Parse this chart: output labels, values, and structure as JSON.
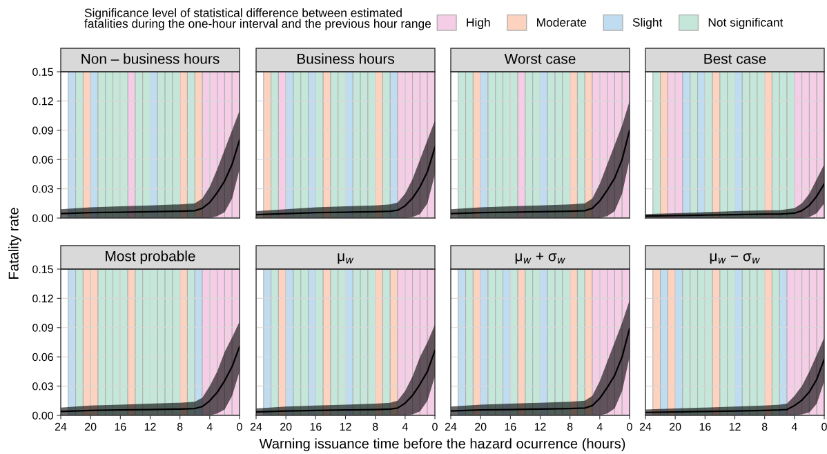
{
  "chart_data": [
    {
      "type": "line",
      "title": "Non – business hours",
      "xlabel": "Warning issuance time before the hazard ocurrence (hours)",
      "ylabel": "Fatality rate",
      "legend_title": "Significance level of statistical difference between estimated\nfatalities during the one-hour interval and the previous hour range",
      "legend": "top right",
      "grid": true,
      "tick_labels": "y",
      "xlim": [
        24,
        0
      ],
      "xticks": [
        {
          "value": 24,
          "label": null
        },
        {
          "value": 20,
          "label": null
        },
        {
          "value": 16,
          "label": null
        },
        {
          "value": 12,
          "label": null
        },
        {
          "value": 8,
          "label": null
        },
        {
          "value": 4,
          "label": null
        },
        {
          "value": 0,
          "label": null
        }
      ],
      "ylim": [
        0,
        0.15
      ],
      "yticks": [
        {
          "value": 0,
          "label": "0.00"
        },
        {
          "value": 0.03,
          "label": "0.03"
        },
        {
          "value": 0.06,
          "label": "0.06"
        },
        {
          "value": 0.09,
          "label": "0.09"
        },
        {
          "value": 0.12,
          "label": "0.12"
        },
        {
          "value": 0.15,
          "label": "0.15"
        }
      ],
      "x": [
        24,
        20,
        16,
        12,
        8,
        6,
        5,
        4,
        3,
        2,
        1,
        0
      ],
      "series": [
        {
          "color": "#000000",
          "values": [
            0.0045,
            0.0055,
            0.006,
            0.0065,
            0.007,
            0.0075,
            0.01,
            0.016,
            0.026,
            0.038,
            0.055,
            0.08
          ],
          "lower": [
            0,
            0,
            0,
            0,
            0,
            0,
            0,
            0,
            0.002,
            0.006,
            0.02,
            0.05
          ],
          "upper": [
            0.009,
            0.011,
            0.012,
            0.013,
            0.014,
            0.015,
            0.02,
            0.032,
            0.05,
            0.07,
            0.09,
            0.11
          ]
        }
      ],
      "bands": [
        {
          "axis": "x",
          "from": 15,
          "to": 14,
          "color": "#f5cde6",
          "label": "High"
        },
        {
          "axis": "x",
          "from": 5,
          "to": 4,
          "color": "#f5cde6"
        },
        {
          "axis": "x",
          "from": 4,
          "to": 3,
          "color": "#f5cde6"
        },
        {
          "axis": "x",
          "from": 3,
          "to": 2,
          "color": "#f5cde6"
        },
        {
          "axis": "x",
          "from": 2,
          "to": 1,
          "color": "#f5cde6"
        },
        {
          "axis": "x",
          "from": 1,
          "to": 0,
          "color": "#f5cde6"
        },
        {
          "axis": "x",
          "from": 21,
          "to": 20,
          "color": "#fdd2bf",
          "label": "Moderate"
        },
        {
          "axis": "x",
          "from": 8,
          "to": 7,
          "color": "#fdd2bf"
        },
        {
          "axis": "x",
          "from": 6,
          "to": 5,
          "color": "#fdd2bf"
        },
        {
          "axis": "x",
          "from": 23,
          "to": 22,
          "color": "#bfdcf1",
          "label": "Slight"
        },
        {
          "axis": "x",
          "from": 20,
          "to": 19,
          "color": "#bfdcf1"
        },
        {
          "axis": "x",
          "from": 12,
          "to": 11,
          "color": "#bfdcf1"
        },
        {
          "axis": "x",
          "from": 22,
          "to": 21,
          "color": "#c4e7d9",
          "label": "Not significant"
        },
        {
          "axis": "x",
          "from": 19,
          "to": 18,
          "color": "#c4e7d9"
        },
        {
          "axis": "x",
          "from": 18,
          "to": 17,
          "color": "#c4e7d9"
        },
        {
          "axis": "x",
          "from": 17,
          "to": 16,
          "color": "#c4e7d9"
        },
        {
          "axis": "x",
          "from": 16,
          "to": 15,
          "color": "#c4e7d9"
        },
        {
          "axis": "x",
          "from": 14,
          "to": 13,
          "color": "#c4e7d9"
        },
        {
          "axis": "x",
          "from": 13,
          "to": 12,
          "color": "#c4e7d9"
        },
        {
          "axis": "x",
          "from": 11,
          "to": 10,
          "color": "#c4e7d9"
        },
        {
          "axis": "x",
          "from": 10,
          "to": 9,
          "color": "#c4e7d9"
        },
        {
          "axis": "x",
          "from": 9,
          "to": 8,
          "color": "#c4e7d9"
        },
        {
          "axis": "x",
          "from": 7,
          "to": 6,
          "color": "#c4e7d9"
        }
      ]
    },
    {
      "type": "line",
      "title": "Business hours",
      "grid": true,
      "tick_labels": false,
      "xlim": [
        24,
        0
      ],
      "xticks": [
        {
          "value": 24,
          "label": null
        },
        {
          "value": 20,
          "label": null
        },
        {
          "value": 16,
          "label": null
        },
        {
          "value": 12,
          "label": null
        },
        {
          "value": 8,
          "label": null
        },
        {
          "value": 4,
          "label": null
        },
        {
          "value": 0,
          "label": null
        }
      ],
      "ylim": [
        0,
        0.15
      ],
      "yticks": [
        {
          "value": 0,
          "label": null
        },
        {
          "value": 0.03,
          "label": null
        },
        {
          "value": 0.06,
          "label": null
        },
        {
          "value": 0.09,
          "label": null
        },
        {
          "value": 0.12,
          "label": null
        },
        {
          "value": 0.15,
          "label": null
        }
      ],
      "x": [
        24,
        20,
        16,
        12,
        8,
        6,
        5,
        4,
        3,
        2,
        1,
        0
      ],
      "series": [
        {
          "color": "#000000",
          "values": [
            0.0035,
            0.0045,
            0.0055,
            0.006,
            0.0065,
            0.007,
            0.008,
            0.0125,
            0.0205,
            0.032,
            0.0475,
            0.0725
          ],
          "lower": [
            0,
            0,
            0,
            0,
            0,
            0,
            0,
            0,
            0.001,
            0.004,
            0.015,
            0.045
          ],
          "upper": [
            0.007,
            0.009,
            0.011,
            0.012,
            0.013,
            0.014,
            0.016,
            0.025,
            0.04,
            0.06,
            0.08,
            0.1
          ]
        }
      ],
      "bands": [
        {
          "axis": "x",
          "from": 23,
          "to": 22,
          "color": "#fdd2bf"
        },
        {
          "axis": "x",
          "from": 22,
          "to": 21,
          "color": "#c4e7d9"
        },
        {
          "axis": "x",
          "from": 21,
          "to": 20,
          "color": "#f5cde6"
        },
        {
          "axis": "x",
          "from": 20,
          "to": 19,
          "color": "#bfdcf1"
        },
        {
          "axis": "x",
          "from": 19,
          "to": 18,
          "color": "#c4e7d9"
        },
        {
          "axis": "x",
          "from": 18,
          "to": 17,
          "color": "#c4e7d9"
        },
        {
          "axis": "x",
          "from": 17,
          "to": 16,
          "color": "#bfdcf1"
        },
        {
          "axis": "x",
          "from": 16,
          "to": 15,
          "color": "#c4e7d9"
        },
        {
          "axis": "x",
          "from": 15,
          "to": 14,
          "color": "#fdd2bf"
        },
        {
          "axis": "x",
          "from": 14,
          "to": 13,
          "color": "#c4e7d9"
        },
        {
          "axis": "x",
          "from": 13,
          "to": 12,
          "color": "#c4e7d9"
        },
        {
          "axis": "x",
          "from": 12,
          "to": 11,
          "color": "#bfdcf1"
        },
        {
          "axis": "x",
          "from": 11,
          "to": 10,
          "color": "#c4e7d9"
        },
        {
          "axis": "x",
          "from": 10,
          "to": 9,
          "color": "#c4e7d9"
        },
        {
          "axis": "x",
          "from": 9,
          "to": 8,
          "color": "#c4e7d9"
        },
        {
          "axis": "x",
          "from": 8,
          "to": 7,
          "color": "#fdd2bf"
        },
        {
          "axis": "x",
          "from": 7,
          "to": 6,
          "color": "#c4e7d9"
        },
        {
          "axis": "x",
          "from": 6,
          "to": 5,
          "color": "#bfdcf1"
        },
        {
          "axis": "x",
          "from": 5,
          "to": 4,
          "color": "#f5cde6"
        },
        {
          "axis": "x",
          "from": 4,
          "to": 3,
          "color": "#f5cde6"
        },
        {
          "axis": "x",
          "from": 3,
          "to": 2,
          "color": "#f5cde6"
        },
        {
          "axis": "x",
          "from": 2,
          "to": 1,
          "color": "#f5cde6"
        },
        {
          "axis": "x",
          "from": 1,
          "to": 0,
          "color": "#f5cde6"
        }
      ]
    },
    {
      "type": "line",
      "title": "Worst case",
      "grid": true,
      "tick_labels": false,
      "xlim": [
        24,
        0
      ],
      "xticks": [
        {
          "value": 24,
          "label": null
        },
        {
          "value": 20,
          "label": null
        },
        {
          "value": 16,
          "label": null
        },
        {
          "value": 12,
          "label": null
        },
        {
          "value": 8,
          "label": null
        },
        {
          "value": 4,
          "label": null
        },
        {
          "value": 0,
          "label": null
        }
      ],
      "ylim": [
        0,
        0.15
      ],
      "yticks": [
        {
          "value": 0,
          "label": null
        },
        {
          "value": 0.03,
          "label": null
        },
        {
          "value": 0.06,
          "label": null
        },
        {
          "value": 0.09,
          "label": null
        },
        {
          "value": 0.12,
          "label": null
        },
        {
          "value": 0.15,
          "label": null
        }
      ],
      "x": [
        24,
        20,
        16,
        12,
        8,
        6,
        5,
        4,
        3,
        2,
        1,
        0
      ],
      "series": [
        {
          "color": "#000000",
          "values": [
            0.0045,
            0.0055,
            0.006,
            0.0065,
            0.007,
            0.0075,
            0.01,
            0.0175,
            0.0285,
            0.041,
            0.06,
            0.09
          ],
          "lower": [
            0,
            0,
            0,
            0,
            0,
            0,
            0,
            0,
            0.002,
            0.007,
            0.025,
            0.06
          ],
          "upper": [
            0.009,
            0.011,
            0.012,
            0.013,
            0.014,
            0.015,
            0.02,
            0.035,
            0.055,
            0.075,
            0.095,
            0.12
          ]
        }
      ],
      "bands": [
        {
          "axis": "x",
          "from": 23,
          "to": 22,
          "color": "#c4e7d9"
        },
        {
          "axis": "x",
          "from": 22,
          "to": 21,
          "color": "#c4e7d9"
        },
        {
          "axis": "x",
          "from": 21,
          "to": 20,
          "color": "#fdd2bf"
        },
        {
          "axis": "x",
          "from": 20,
          "to": 19,
          "color": "#bfdcf1"
        },
        {
          "axis": "x",
          "from": 19,
          "to": 18,
          "color": "#c4e7d9"
        },
        {
          "axis": "x",
          "from": 18,
          "to": 17,
          "color": "#c4e7d9"
        },
        {
          "axis": "x",
          "from": 17,
          "to": 16,
          "color": "#c4e7d9"
        },
        {
          "axis": "x",
          "from": 16,
          "to": 15,
          "color": "#c4e7d9"
        },
        {
          "axis": "x",
          "from": 15,
          "to": 14,
          "color": "#f5cde6"
        },
        {
          "axis": "x",
          "from": 14,
          "to": 13,
          "color": "#c4e7d9"
        },
        {
          "axis": "x",
          "from": 13,
          "to": 12,
          "color": "#c4e7d9"
        },
        {
          "axis": "x",
          "from": 12,
          "to": 11,
          "color": "#bfdcf1"
        },
        {
          "axis": "x",
          "from": 11,
          "to": 10,
          "color": "#c4e7d9"
        },
        {
          "axis": "x",
          "from": 10,
          "to": 9,
          "color": "#c4e7d9"
        },
        {
          "axis": "x",
          "from": 9,
          "to": 8,
          "color": "#c4e7d9"
        },
        {
          "axis": "x",
          "from": 8,
          "to": 7,
          "color": "#fdd2bf"
        },
        {
          "axis": "x",
          "from": 7,
          "to": 6,
          "color": "#c4e7d9"
        },
        {
          "axis": "x",
          "from": 6,
          "to": 5,
          "color": "#fdd2bf"
        },
        {
          "axis": "x",
          "from": 5,
          "to": 4,
          "color": "#f5cde6"
        },
        {
          "axis": "x",
          "from": 4,
          "to": 3,
          "color": "#f5cde6"
        },
        {
          "axis": "x",
          "from": 3,
          "to": 2,
          "color": "#f5cde6"
        },
        {
          "axis": "x",
          "from": 2,
          "to": 1,
          "color": "#f5cde6"
        },
        {
          "axis": "x",
          "from": 1,
          "to": 0,
          "color": "#f5cde6"
        }
      ]
    },
    {
      "type": "line",
      "title": "Best case",
      "grid": true,
      "tick_labels": false,
      "xlim": [
        24,
        0
      ],
      "xticks": [
        {
          "value": 24,
          "label": null
        },
        {
          "value": 20,
          "label": null
        },
        {
          "value": 16,
          "label": null
        },
        {
          "value": 12,
          "label": null
        },
        {
          "value": 8,
          "label": null
        },
        {
          "value": 4,
          "label": null
        },
        {
          "value": 0,
          "label": null
        }
      ],
      "ylim": [
        0,
        0.15
      ],
      "yticks": [
        {
          "value": 0,
          "label": null
        },
        {
          "value": 0.03,
          "label": null
        },
        {
          "value": 0.06,
          "label": null
        },
        {
          "value": 0.09,
          "label": null
        },
        {
          "value": 0.12,
          "label": null
        },
        {
          "value": 0.15,
          "label": null
        }
      ],
      "x": [
        24,
        20,
        16,
        12,
        8,
        6,
        5,
        4,
        3,
        2,
        1,
        0
      ],
      "series": [
        {
          "color": "#000000",
          "values": [
            0.002,
            0.0025,
            0.003,
            0.0035,
            0.004,
            0.004,
            0.0045,
            0.005,
            0.0075,
            0.013,
            0.0225,
            0.035
          ],
          "lower": [
            0,
            0,
            0,
            0,
            0,
            0,
            0,
            0,
            0,
            0.001,
            0.005,
            0.015
          ],
          "upper": [
            0.004,
            0.005,
            0.006,
            0.007,
            0.008,
            0.008,
            0.009,
            0.01,
            0.015,
            0.025,
            0.04,
            0.055
          ]
        }
      ],
      "bands": [
        {
          "axis": "x",
          "from": 23,
          "to": 22,
          "color": "#c4e7d9"
        },
        {
          "axis": "x",
          "from": 22,
          "to": 21,
          "color": "#fdd2bf"
        },
        {
          "axis": "x",
          "from": 21,
          "to": 20,
          "color": "#f5cde6"
        },
        {
          "axis": "x",
          "from": 20,
          "to": 19,
          "color": "#f5cde6"
        },
        {
          "axis": "x",
          "from": 19,
          "to": 18,
          "color": "#bfdcf1"
        },
        {
          "axis": "x",
          "from": 18,
          "to": 17,
          "color": "#c4e7d9"
        },
        {
          "axis": "x",
          "from": 17,
          "to": 16,
          "color": "#bfdcf1"
        },
        {
          "axis": "x",
          "from": 16,
          "to": 15,
          "color": "#c4e7d9"
        },
        {
          "axis": "x",
          "from": 15,
          "to": 14,
          "color": "#fdd2bf"
        },
        {
          "axis": "x",
          "from": 14,
          "to": 13,
          "color": "#c4e7d9"
        },
        {
          "axis": "x",
          "from": 13,
          "to": 12,
          "color": "#c4e7d9"
        },
        {
          "axis": "x",
          "from": 12,
          "to": 11,
          "color": "#bfdcf1"
        },
        {
          "axis": "x",
          "from": 11,
          "to": 10,
          "color": "#c4e7d9"
        },
        {
          "axis": "x",
          "from": 10,
          "to": 9,
          "color": "#c4e7d9"
        },
        {
          "axis": "x",
          "from": 9,
          "to": 8,
          "color": "#c4e7d9"
        },
        {
          "axis": "x",
          "from": 8,
          "to": 7,
          "color": "#fdd2bf"
        },
        {
          "axis": "x",
          "from": 7,
          "to": 6,
          "color": "#c4e7d9"
        },
        {
          "axis": "x",
          "from": 6,
          "to": 5,
          "color": "#c4e7d9"
        },
        {
          "axis": "x",
          "from": 5,
          "to": 4,
          "color": "#c4e7d9"
        },
        {
          "axis": "x",
          "from": 4,
          "to": 3,
          "color": "#f5cde6"
        },
        {
          "axis": "x",
          "from": 3,
          "to": 2,
          "color": "#f5cde6"
        },
        {
          "axis": "x",
          "from": 2,
          "to": 1,
          "color": "#f5cde6"
        },
        {
          "axis": "x",
          "from": 1,
          "to": 0,
          "color": "#f5cde6"
        }
      ]
    },
    {
      "type": "line",
      "title": "Most probable",
      "grid": true,
      "xlim": [
        24,
        0
      ],
      "xticks": [
        24,
        20,
        16,
        12,
        8,
        4,
        0
      ],
      "ylim": [
        0,
        0.15
      ],
      "yticks": [
        {
          "value": 0,
          "label": "0.00"
        },
        {
          "value": 0.03,
          "label": "0.03"
        },
        {
          "value": 0.06,
          "label": "0.06"
        },
        {
          "value": 0.09,
          "label": "0.09"
        },
        {
          "value": 0.12,
          "label": "0.12"
        },
        {
          "value": 0.15,
          "label": "0.15"
        }
      ],
      "x": [
        24,
        20,
        16,
        12,
        8,
        6,
        5,
        4,
        3,
        2,
        1,
        0
      ],
      "series": [
        {
          "color": "#000000",
          "values": [
            0.004,
            0.005,
            0.0055,
            0.006,
            0.0065,
            0.007,
            0.009,
            0.015,
            0.0235,
            0.0355,
            0.05,
            0.0705
          ],
          "lower": [
            0,
            0,
            0,
            0,
            0,
            0,
            0,
            0,
            0.002,
            0.006,
            0.02,
            0.045
          ],
          "upper": [
            0.008,
            0.01,
            0.011,
            0.012,
            0.013,
            0.014,
            0.018,
            0.03,
            0.045,
            0.065,
            0.08,
            0.096
          ]
        }
      ],
      "bands": [
        {
          "axis": "x",
          "from": 23,
          "to": 22,
          "color": "#bfdcf1"
        },
        {
          "axis": "x",
          "from": 22,
          "to": 21,
          "color": "#c4e7d9"
        },
        {
          "axis": "x",
          "from": 21,
          "to": 20,
          "color": "#fdd2bf"
        },
        {
          "axis": "x",
          "from": 20,
          "to": 19,
          "color": "#fdd2bf"
        },
        {
          "axis": "x",
          "from": 19,
          "to": 18,
          "color": "#c4e7d9"
        },
        {
          "axis": "x",
          "from": 18,
          "to": 17,
          "color": "#c4e7d9"
        },
        {
          "axis": "x",
          "from": 17,
          "to": 16,
          "color": "#c4e7d9"
        },
        {
          "axis": "x",
          "from": 16,
          "to": 15,
          "color": "#c4e7d9"
        },
        {
          "axis": "x",
          "from": 15,
          "to": 14,
          "color": "#fdd2bf"
        },
        {
          "axis": "x",
          "from": 14,
          "to": 13,
          "color": "#c4e7d9"
        },
        {
          "axis": "x",
          "from": 13,
          "to": 12,
          "color": "#c4e7d9"
        },
        {
          "axis": "x",
          "from": 12,
          "to": 11,
          "color": "#c4e7d9"
        },
        {
          "axis": "x",
          "from": 11,
          "to": 10,
          "color": "#c4e7d9"
        },
        {
          "axis": "x",
          "from": 10,
          "to": 9,
          "color": "#c4e7d9"
        },
        {
          "axis": "x",
          "from": 9,
          "to": 8,
          "color": "#c4e7d9"
        },
        {
          "axis": "x",
          "from": 8,
          "to": 7,
          "color": "#fdd2bf"
        },
        {
          "axis": "x",
          "from": 7,
          "to": 6,
          "color": "#c4e7d9"
        },
        {
          "axis": "x",
          "from": 6,
          "to": 5,
          "color": "#bfdcf1"
        },
        {
          "axis": "x",
          "from": 5,
          "to": 4,
          "color": "#f5cde6"
        },
        {
          "axis": "x",
          "from": 4,
          "to": 3,
          "color": "#f5cde6"
        },
        {
          "axis": "x",
          "from": 3,
          "to": 2,
          "color": "#f5cde6"
        },
        {
          "axis": "x",
          "from": 2,
          "to": 1,
          "color": "#f5cde6"
        },
        {
          "axis": "x",
          "from": 1,
          "to": 0,
          "color": "#f5cde6"
        }
      ]
    },
    {
      "type": "line",
      "title": "μ$_{w}$",
      "grid": true,
      "tick_labels": "x",
      "xlim": [
        24,
        0
      ],
      "xticks": [
        24,
        20,
        16,
        12,
        8,
        4,
        0
      ],
      "ylim": [
        0,
        0.15
      ],
      "yticks": [
        {
          "value": 0,
          "label": null
        },
        {
          "value": 0.03,
          "label": null
        },
        {
          "value": 0.06,
          "label": null
        },
        {
          "value": 0.09,
          "label": null
        },
        {
          "value": 0.12,
          "label": null
        },
        {
          "value": 0.15,
          "label": null
        }
      ],
      "x": [
        24,
        20,
        16,
        12,
        8,
        6,
        5,
        4,
        3,
        2,
        1,
        0
      ],
      "series": [
        {
          "color": "#000000",
          "values": [
            0.0035,
            0.0045,
            0.005,
            0.0055,
            0.006,
            0.0065,
            0.0075,
            0.0125,
            0.0205,
            0.032,
            0.045,
            0.0665
          ],
          "lower": [
            0,
            0,
            0,
            0,
            0,
            0,
            0,
            0,
            0.001,
            0.004,
            0.015,
            0.04
          ],
          "upper": [
            0.007,
            0.009,
            0.01,
            0.011,
            0.012,
            0.013,
            0.015,
            0.025,
            0.04,
            0.06,
            0.075,
            0.093
          ]
        }
      ],
      "bands": [
        {
          "axis": "x",
          "from": 23,
          "to": 22,
          "color": "#bfdcf1"
        },
        {
          "axis": "x",
          "from": 22,
          "to": 21,
          "color": "#c4e7d9"
        },
        {
          "axis": "x",
          "from": 21,
          "to": 20,
          "color": "#fdd2bf"
        },
        {
          "axis": "x",
          "from": 20,
          "to": 19,
          "color": "#bfdcf1"
        },
        {
          "axis": "x",
          "from": 19,
          "to": 18,
          "color": "#c4e7d9"
        },
        {
          "axis": "x",
          "from": 18,
          "to": 17,
          "color": "#c4e7d9"
        },
        {
          "axis": "x",
          "from": 17,
          "to": 16,
          "color": "#bfdcf1"
        },
        {
          "axis": "x",
          "from": 16,
          "to": 15,
          "color": "#c4e7d9"
        },
        {
          "axis": "x",
          "from": 15,
          "to": 14,
          "color": "#fdd2bf"
        },
        {
          "axis": "x",
          "from": 14,
          "to": 13,
          "color": "#c4e7d9"
        },
        {
          "axis": "x",
          "from": 13,
          "to": 12,
          "color": "#c4e7d9"
        },
        {
          "axis": "x",
          "from": 12,
          "to": 11,
          "color": "#bfdcf1"
        },
        {
          "axis": "x",
          "from": 11,
          "to": 10,
          "color": "#c4e7d9"
        },
        {
          "axis": "x",
          "from": 10,
          "to": 9,
          "color": "#c4e7d9"
        },
        {
          "axis": "x",
          "from": 9,
          "to": 8,
          "color": "#c4e7d9"
        },
        {
          "axis": "x",
          "from": 8,
          "to": 7,
          "color": "#fdd2bf"
        },
        {
          "axis": "x",
          "from": 7,
          "to": 6,
          "color": "#c4e7d9"
        },
        {
          "axis": "x",
          "from": 6,
          "to": 5,
          "color": "#fdd2bf"
        },
        {
          "axis": "x",
          "from": 5,
          "to": 4,
          "color": "#f5cde6"
        },
        {
          "axis": "x",
          "from": 4,
          "to": 3,
          "color": "#f5cde6"
        },
        {
          "axis": "x",
          "from": 3,
          "to": 2,
          "color": "#f5cde6"
        },
        {
          "axis": "x",
          "from": 2,
          "to": 1,
          "color": "#f5cde6"
        },
        {
          "axis": "x",
          "from": 1,
          "to": 0,
          "color": "#f5cde6"
        }
      ]
    },
    {
      "type": "line",
      "title": "μ$_{w}$ + σ$_{w}$",
      "grid": true,
      "tick_labels": "x",
      "xlim": [
        24,
        0
      ],
      "xticks": [
        24,
        20,
        16,
        12,
        8,
        4,
        0
      ],
      "ylim": [
        0,
        0.15
      ],
      "yticks": [
        {
          "value": 0,
          "label": null
        },
        {
          "value": 0.03,
          "label": null
        },
        {
          "value": 0.06,
          "label": null
        },
        {
          "value": 0.09,
          "label": null
        },
        {
          "value": 0.12,
          "label": null
        },
        {
          "value": 0.15,
          "label": null
        }
      ],
      "x": [
        24,
        20,
        16,
        12,
        8,
        6,
        5,
        4,
        3,
        2,
        1,
        0
      ],
      "series": [
        {
          "color": "#000000",
          "values": [
            0.0045,
            0.0055,
            0.006,
            0.0065,
            0.007,
            0.0075,
            0.01,
            0.0175,
            0.0285,
            0.041,
            0.06,
            0.089
          ],
          "lower": [
            0,
            0,
            0,
            0,
            0,
            0,
            0,
            0,
            0.002,
            0.007,
            0.025,
            0.06
          ],
          "upper": [
            0.009,
            0.011,
            0.012,
            0.013,
            0.014,
            0.015,
            0.02,
            0.035,
            0.055,
            0.075,
            0.095,
            0.118
          ]
        }
      ],
      "bands": [
        {
          "axis": "x",
          "from": 23,
          "to": 22,
          "color": "#bfdcf1"
        },
        {
          "axis": "x",
          "from": 22,
          "to": 21,
          "color": "#c4e7d9"
        },
        {
          "axis": "x",
          "from": 21,
          "to": 20,
          "color": "#fdd2bf"
        },
        {
          "axis": "x",
          "from": 20,
          "to": 19,
          "color": "#bfdcf1"
        },
        {
          "axis": "x",
          "from": 19,
          "to": 18,
          "color": "#c4e7d9"
        },
        {
          "axis": "x",
          "from": 18,
          "to": 17,
          "color": "#c4e7d9"
        },
        {
          "axis": "x",
          "from": 17,
          "to": 16,
          "color": "#bfdcf1"
        },
        {
          "axis": "x",
          "from": 16,
          "to": 15,
          "color": "#c4e7d9"
        },
        {
          "axis": "x",
          "from": 15,
          "to": 14,
          "color": "#fdd2bf"
        },
        {
          "axis": "x",
          "from": 14,
          "to": 13,
          "color": "#c4e7d9"
        },
        {
          "axis": "x",
          "from": 13,
          "to": 12,
          "color": "#c4e7d9"
        },
        {
          "axis": "x",
          "from": 12,
          "to": 11,
          "color": "#bfdcf1"
        },
        {
          "axis": "x",
          "from": 11,
          "to": 10,
          "color": "#c4e7d9"
        },
        {
          "axis": "x",
          "from": 10,
          "to": 9,
          "color": "#c4e7d9"
        },
        {
          "axis": "x",
          "from": 9,
          "to": 8,
          "color": "#c4e7d9"
        },
        {
          "axis": "x",
          "from": 8,
          "to": 7,
          "color": "#fdd2bf"
        },
        {
          "axis": "x",
          "from": 7,
          "to": 6,
          "color": "#c4e7d9"
        },
        {
          "axis": "x",
          "from": 6,
          "to": 5,
          "color": "#fdd2bf"
        },
        {
          "axis": "x",
          "from": 5,
          "to": 4,
          "color": "#f5cde6"
        },
        {
          "axis": "x",
          "from": 4,
          "to": 3,
          "color": "#f5cde6"
        },
        {
          "axis": "x",
          "from": 3,
          "to": 2,
          "color": "#f5cde6"
        },
        {
          "axis": "x",
          "from": 2,
          "to": 1,
          "color": "#f5cde6"
        },
        {
          "axis": "x",
          "from": 1,
          "to": 0,
          "color": "#f5cde6"
        }
      ]
    },
    {
      "type": "line",
      "title": "μ$_{w}$ − σ$_{w}$",
      "grid": true,
      "tick_labels": "x",
      "xlim": [
        24,
        0
      ],
      "xticks": [
        24,
        20,
        16,
        12,
        8,
        4,
        0
      ],
      "ylim": [
        0,
        0.15
      ],
      "yticks": [
        {
          "value": 0,
          "label": null
        },
        {
          "value": 0.03,
          "label": null
        },
        {
          "value": 0.06,
          "label": null
        },
        {
          "value": 0.09,
          "label": null
        },
        {
          "value": 0.12,
          "label": null
        },
        {
          "value": 0.15,
          "label": null
        }
      ],
      "x": [
        24,
        20,
        16,
        12,
        8,
        6,
        5,
        4,
        3,
        2,
        1,
        0
      ],
      "series": [
        {
          "color": "#000000",
          "values": [
            0.003,
            0.0035,
            0.004,
            0.0045,
            0.005,
            0.0055,
            0.006,
            0.01,
            0.0155,
            0.024,
            0.037,
            0.0575
          ],
          "lower": [
            0,
            0,
            0,
            0,
            0,
            0,
            0,
            0,
            0.001,
            0.003,
            0.012,
            0.035
          ],
          "upper": [
            0.006,
            0.007,
            0.008,
            0.009,
            0.01,
            0.011,
            0.012,
            0.02,
            0.03,
            0.045,
            0.062,
            0.08
          ]
        }
      ],
      "bands": [
        {
          "axis": "x",
          "from": 23,
          "to": 22,
          "color": "#fdd2bf"
        },
        {
          "axis": "x",
          "from": 22,
          "to": 21,
          "color": "#bfdcf1"
        },
        {
          "axis": "x",
          "from": 21,
          "to": 20,
          "color": "#fdd2bf"
        },
        {
          "axis": "x",
          "from": 20,
          "to": 19,
          "color": "#bfdcf1"
        },
        {
          "axis": "x",
          "from": 19,
          "to": 18,
          "color": "#c4e7d9"
        },
        {
          "axis": "x",
          "from": 18,
          "to": 17,
          "color": "#c4e7d9"
        },
        {
          "axis": "x",
          "from": 17,
          "to": 16,
          "color": "#c4e7d9"
        },
        {
          "axis": "x",
          "from": 16,
          "to": 15,
          "color": "#c4e7d9"
        },
        {
          "axis": "x",
          "from": 15,
          "to": 14,
          "color": "#fdd2bf"
        },
        {
          "axis": "x",
          "from": 14,
          "to": 13,
          "color": "#c4e7d9"
        },
        {
          "axis": "x",
          "from": 13,
          "to": 12,
          "color": "#c4e7d9"
        },
        {
          "axis": "x",
          "from": 12,
          "to": 11,
          "color": "#bfdcf1"
        },
        {
          "axis": "x",
          "from": 11,
          "to": 10,
          "color": "#c4e7d9"
        },
        {
          "axis": "x",
          "from": 10,
          "to": 9,
          "color": "#c4e7d9"
        },
        {
          "axis": "x",
          "from": 9,
          "to": 8,
          "color": "#c4e7d9"
        },
        {
          "axis": "x",
          "from": 8,
          "to": 7,
          "color": "#fdd2bf"
        },
        {
          "axis": "x",
          "from": 7,
          "to": 6,
          "color": "#c4e7d9"
        },
        {
          "axis": "x",
          "from": 6,
          "to": 5,
          "color": "#bfdcf1"
        },
        {
          "axis": "x",
          "from": 5,
          "to": 4,
          "color": "#f5cde6"
        },
        {
          "axis": "x",
          "from": 4,
          "to": 3,
          "color": "#f5cde6"
        },
        {
          "axis": "x",
          "from": 3,
          "to": 2,
          "color": "#f5cde6"
        },
        {
          "axis": "x",
          "from": 2,
          "to": 1,
          "color": "#f5cde6"
        },
        {
          "axis": "x",
          "from": 1,
          "to": 0,
          "color": "#f5cde6"
        }
      ]
    }
  ]
}
